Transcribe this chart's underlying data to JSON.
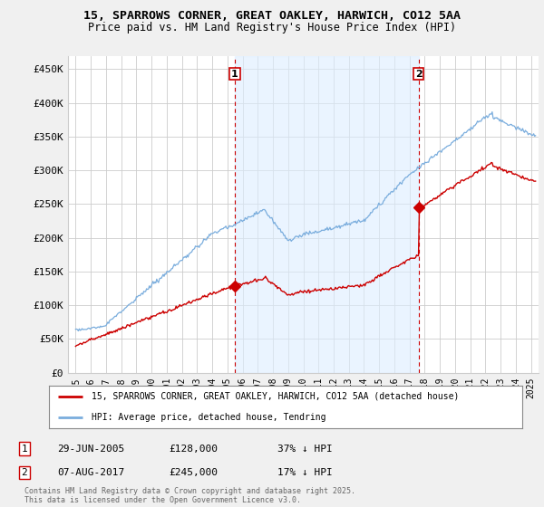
{
  "title": "15, SPARROWS CORNER, GREAT OAKLEY, HARWICH, CO12 5AA",
  "subtitle": "Price paid vs. HM Land Registry's House Price Index (HPI)",
  "ylabel_ticks": [
    "£0",
    "£50K",
    "£100K",
    "£150K",
    "£200K",
    "£250K",
    "£300K",
    "£350K",
    "£400K",
    "£450K"
  ],
  "ytick_values": [
    0,
    50000,
    100000,
    150000,
    200000,
    250000,
    300000,
    350000,
    400000,
    450000
  ],
  "ylim": [
    0,
    470000
  ],
  "xlim_start": 1994.5,
  "xlim_end": 2025.5,
  "hpi_color": "#7aaddd",
  "hpi_fill_color": "#ddeeff",
  "price_color": "#cc0000",
  "sale1_date": 2005.49,
  "sale1_price": 128000,
  "sale1_label": "1",
  "sale2_date": 2017.6,
  "sale2_price": 245000,
  "sale2_label": "2",
  "legend_property": "15, SPARROWS CORNER, GREAT OAKLEY, HARWICH, CO12 5AA (detached house)",
  "legend_hpi": "HPI: Average price, detached house, Tendring",
  "note1_date": "29-JUN-2005",
  "note1_price": "£128,000",
  "note1_pct": "37% ↓ HPI",
  "note2_date": "07-AUG-2017",
  "note2_price": "£245,000",
  "note2_pct": "17% ↓ HPI",
  "footer": "Contains HM Land Registry data © Crown copyright and database right 2025.\nThis data is licensed under the Open Government Licence v3.0.",
  "background_color": "#f0f0f0",
  "plot_bg_color": "#ffffff"
}
